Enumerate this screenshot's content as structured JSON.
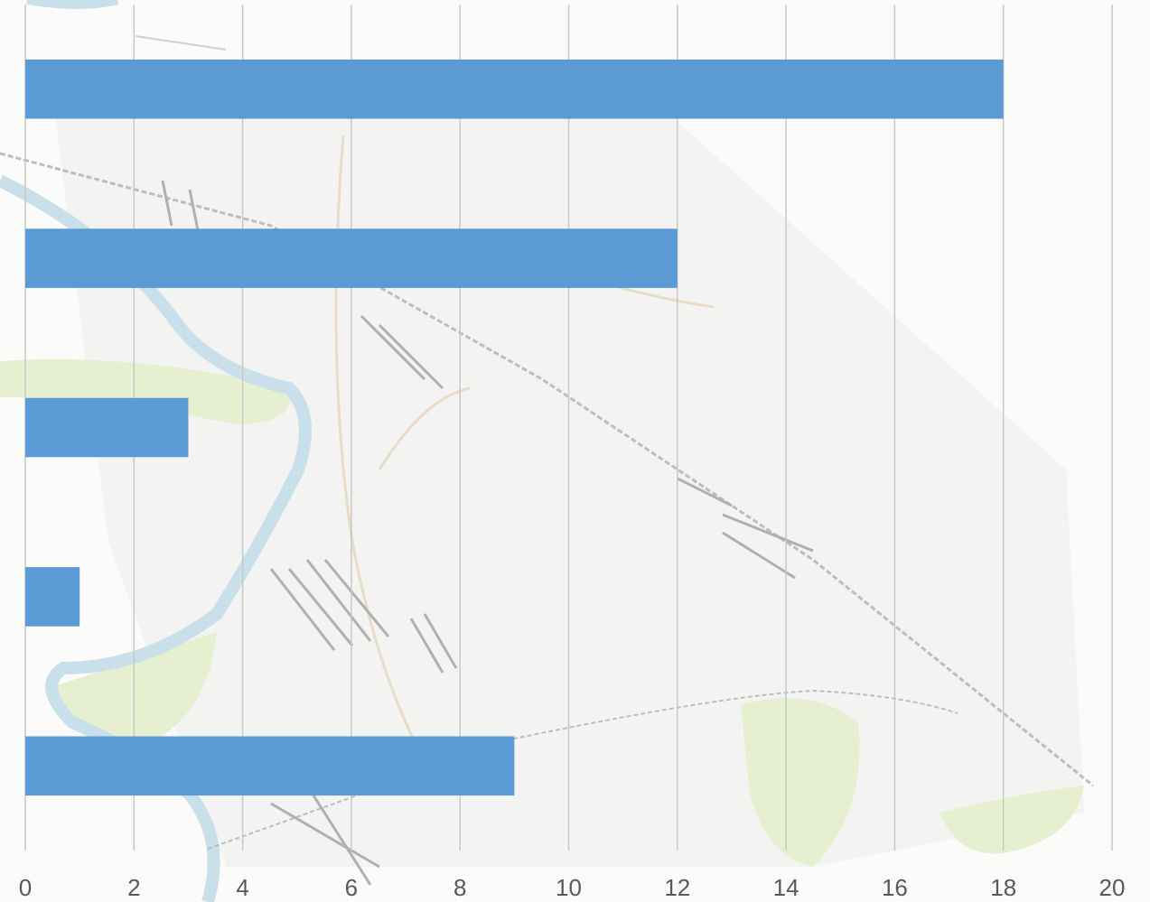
{
  "chart_data": {
    "type": "bar",
    "orientation": "horizontal",
    "title": "",
    "xlabel": "",
    "ylabel": "",
    "categories": [
      "",
      "",
      "",
      "",
      ""
    ],
    "values": [
      18,
      12,
      3,
      1,
      9
    ],
    "xlim": [
      0,
      20
    ],
    "xticks": [
      "0",
      "2",
      "4",
      "6",
      "8",
      "10",
      "12",
      "14",
      "16",
      "18",
      "20"
    ],
    "grid": "vertical",
    "legend": "none",
    "bar_color": "#5b9bd5",
    "background": "faded street map"
  },
  "colors": {
    "bar": "#5b9bd5",
    "gridline": "#c8c8c8",
    "tick_text": "#595959",
    "river": "#c9dfea",
    "park": "#e6efcf",
    "map_line": "#b9b9b9"
  }
}
